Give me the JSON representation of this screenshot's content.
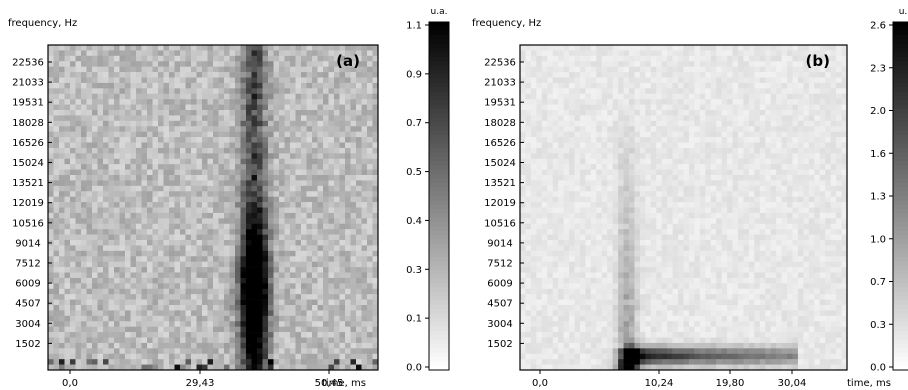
{
  "chart_data": [
    {
      "type": "heatmap",
      "panel_label": "(a)",
      "ylabel": "frequency, Hz",
      "xlabel": "time, ms",
      "x_ticks": [
        "0,0",
        "29,43",
        "50,45"
      ],
      "y_ticks": [
        "1502",
        "3004",
        "4507",
        "6009",
        "7512",
        "9014",
        "10516",
        "12019",
        "13521",
        "15024",
        "16526",
        "18028",
        "19531",
        "21033",
        "22536"
      ],
      "colorbar": {
        "unit": "u.a.",
        "ticks": [
          "0.0",
          "0.1",
          "0.3",
          "0.4",
          "0.5",
          "0.7",
          "0.9",
          "1.1"
        ],
        "range": [
          0.0,
          1.1
        ]
      },
      "grid": {
        "columns": 60,
        "rows": 60
      },
      "features": [
        {
          "description": "diffuse background",
          "level": 0.3
        },
        {
          "description": "vertical band",
          "time_ms": 37.5,
          "freq_range_hz": [
            0,
            23000
          ],
          "level": 0.55
        },
        {
          "description": "intense blob",
          "time_ms": 37.5,
          "freq_hz": 5500,
          "level": 1.0
        },
        {
          "description": "low-frequency bursts",
          "freq_range_hz": [
            0,
            800
          ],
          "level": 0.7
        }
      ]
    },
    {
      "type": "heatmap",
      "panel_label": "(b)",
      "ylabel": "frequency, Hz",
      "xlabel": "time, ms",
      "x_ticks": [
        "0,0",
        "10,24",
        "19,80",
        "30,04"
      ],
      "y_ticks": [
        "1502",
        "3004",
        "4507",
        "6009",
        "7512",
        "9014",
        "10516",
        "12019",
        "13521",
        "15024",
        "16526",
        "18028",
        "19531",
        "21033",
        "22536"
      ],
      "colorbar": {
        "unit": "u.",
        "ticks": [
          "0.0",
          "0.3",
          "0.7",
          "1.0",
          "1.3",
          "1.6",
          "2.0",
          "2.3",
          "2.6"
        ],
        "range": [
          0.0,
          2.6
        ]
      },
      "grid": {
        "columns": 60,
        "rows": 60
      },
      "features": [
        {
          "description": "faint background",
          "level": 0.25
        },
        {
          "description": "vertical line",
          "time_ms": 11.5,
          "freq_range_hz": [
            0,
            20000
          ],
          "level": 0.9
        },
        {
          "description": "low-frequency ridge",
          "time_range_ms": [
            11.5,
            30.0
          ],
          "freq_hz": 1000,
          "level": 2.4
        },
        {
          "description": "onset hot spot",
          "time_ms": 11.5,
          "freq_range_hz": [
            0,
            1500
          ],
          "level": 2.6
        }
      ]
    }
  ]
}
